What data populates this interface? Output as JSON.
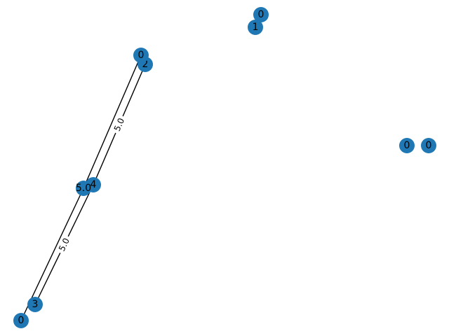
{
  "graph": {
    "node_color": "#1f77b4",
    "edge_color": "#000000",
    "nodes": [
      {
        "id": "n1",
        "label": "1"
      },
      {
        "id": "n1b",
        "label": "0"
      },
      {
        "id": "n2",
        "label": "2"
      },
      {
        "id": "n2b",
        "label": "0"
      },
      {
        "id": "n4",
        "label": "4"
      },
      {
        "id": "n4b",
        "label": "5.0"
      },
      {
        "id": "n3",
        "label": "3"
      },
      {
        "id": "n3b",
        "label": "0"
      },
      {
        "id": "n5",
        "label": "0"
      },
      {
        "id": "n6",
        "label": "0"
      }
    ],
    "edges": [
      {
        "from": "n2",
        "to": "n4",
        "label": "5.0"
      },
      {
        "from": "n2b",
        "to": "n4b",
        "label": ""
      },
      {
        "from": "n4",
        "to": "n3",
        "label": "5.0"
      },
      {
        "from": "n4b",
        "to": "n3b",
        "label": ""
      }
    ]
  }
}
